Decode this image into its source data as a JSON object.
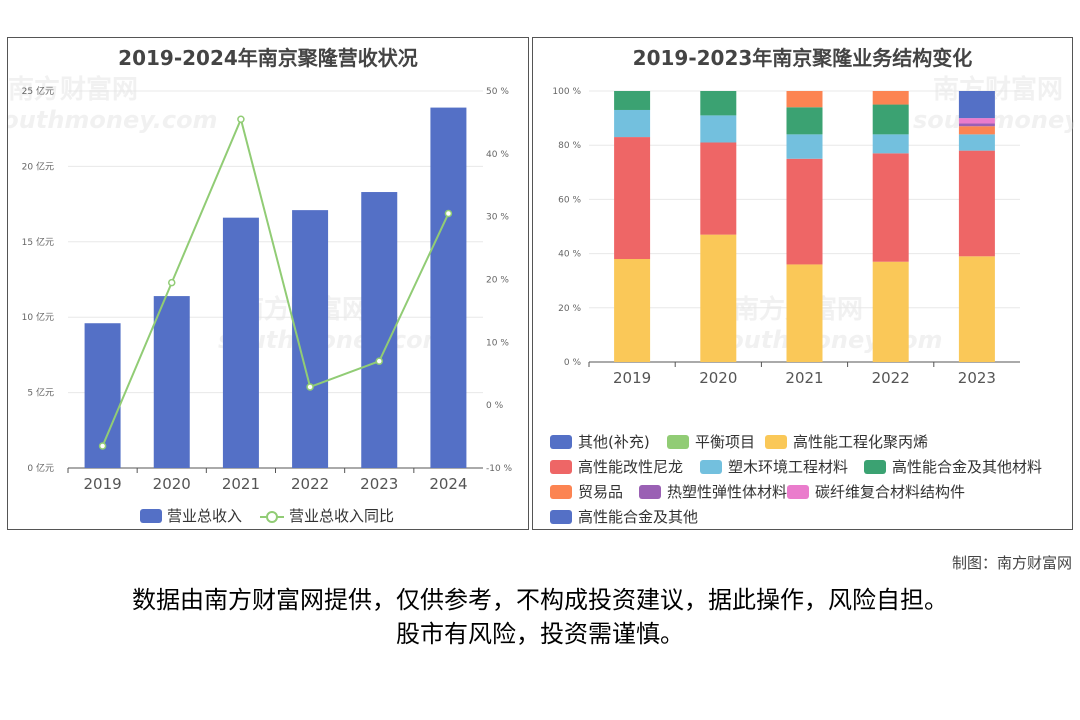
{
  "credit": "制图：南方财富网",
  "disclaimer_line1": "数据由南方财富网提供，仅供参考，不构成投资建议，据此操作，风险自担。",
  "disclaimer_line2": "股市有风险，投资需谨慎。",
  "watermark": [
    "南方财富网",
    "southmoney.com"
  ],
  "chart_data": [
    {
      "type": "bar",
      "title": "2019-2024年南京聚隆营收状况",
      "categories": [
        "2019",
        "2020",
        "2021",
        "2022",
        "2023",
        "2024"
      ],
      "y_left": {
        "ticks": [
          "0 亿元",
          "5 亿元",
          "10 亿元",
          "15 亿元",
          "20 亿元",
          "25 亿元"
        ],
        "range": [
          0,
          25
        ]
      },
      "y_right": {
        "ticks": [
          "-10 %",
          "0 %",
          "10 %",
          "20 %",
          "30 %",
          "40 %",
          "50 %"
        ],
        "range": [
          -10,
          50
        ]
      },
      "series": [
        {
          "name": "营业总收入",
          "type": "bar",
          "axis": "left",
          "color": "#5470c6",
          "values": [
            9.6,
            11.4,
            16.6,
            17.1,
            18.3,
            23.9
          ]
        },
        {
          "name": "营业总收入同比",
          "type": "line",
          "axis": "right",
          "color": "#91cc75",
          "values": [
            -6.5,
            19.5,
            45.5,
            2.9,
            7.0,
            30.5
          ]
        }
      ]
    },
    {
      "type": "bar",
      "stacked": true,
      "title": "2019-2023年南京聚隆业务结构变化",
      "categories": [
        "2019",
        "2020",
        "2021",
        "2022",
        "2023"
      ],
      "y": {
        "ticks": [
          "0 %",
          "20 %",
          "40 %",
          "60 %",
          "80 %",
          "100 %"
        ],
        "range": [
          0,
          100
        ]
      },
      "series": [
        {
          "name": "高性能工程化聚丙烯",
          "color": "#fac858",
          "values": [
            38,
            47,
            36,
            37,
            39
          ]
        },
        {
          "name": "高性能改性尼龙",
          "color": "#ee6666",
          "values": [
            45,
            34,
            39,
            40,
            39
          ]
        },
        {
          "name": "塑木环境工程材料",
          "color": "#73c0de",
          "values": [
            10,
            10,
            9,
            7,
            6
          ]
        },
        {
          "name": "高性能合金及其他材料",
          "color": "#3ba272",
          "values": [
            7,
            9,
            10,
            11,
            0
          ]
        },
        {
          "name": "贸易品",
          "color": "#fc8452",
          "values": [
            0,
            0,
            6,
            5,
            3
          ]
        },
        {
          "name": "热塑性弹性体材料",
          "color": "#9a60b4",
          "values": [
            0,
            0,
            0,
            0,
            1
          ]
        },
        {
          "name": "碳纤维复合材料结构件",
          "color": "#ea7ccc",
          "values": [
            0,
            0,
            0,
            0,
            2
          ]
        },
        {
          "name": "高性能合金及其他",
          "color": "#5470c6",
          "values": [
            0,
            0,
            0,
            0,
            10
          ]
        },
        {
          "name": "平衡项目",
          "color": "#91cc75",
          "values": [
            0,
            0,
            0,
            0,
            0
          ]
        },
        {
          "name": "其他(补充)",
          "color": "#5470c6",
          "values": [
            0,
            0,
            0,
            0,
            0
          ]
        }
      ],
      "legend_order": [
        "其他(补充)",
        "平衡项目",
        "高性能工程化聚丙烯",
        "高性能改性尼龙",
        "塑木环境工程材料",
        "高性能合金及其他材料",
        "贸易品",
        "热塑性弹性体材料",
        "碳纤维复合材料结构件",
        "高性能合金及其他"
      ]
    }
  ]
}
